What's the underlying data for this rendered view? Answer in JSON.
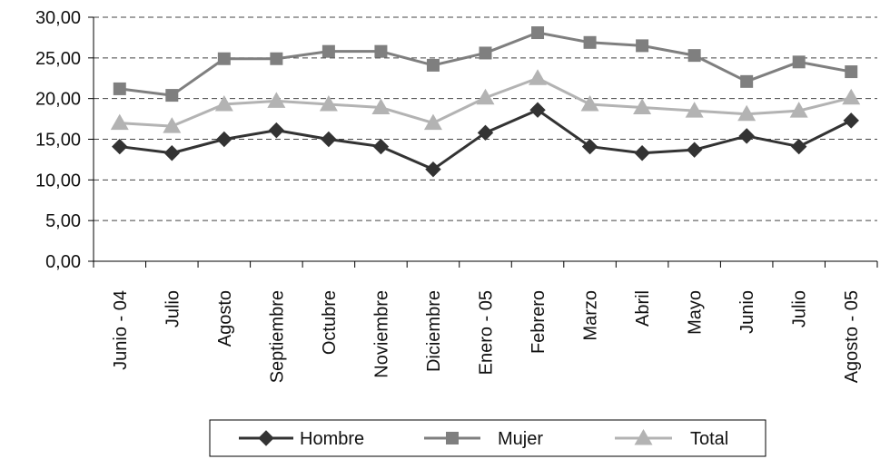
{
  "chart_data": {
    "type": "line",
    "categories": [
      "Junio - 04",
      "Julio",
      "Agosto",
      "Septiembre",
      "Octubre",
      "Noviembre",
      "Diciembre",
      "Enero - 05",
      "Febrero",
      "Marzo",
      "Abril",
      "Mayo",
      "Junio",
      "Julio",
      "Agosto - 05"
    ],
    "yticks": [
      "0,00",
      "5,00",
      "10,00",
      "15,00",
      "20,00",
      "25,00",
      "30,00"
    ],
    "ylim": [
      0,
      30
    ],
    "grid": "horizontal dashed",
    "legend_position": "bottom",
    "series": [
      {
        "name": "Hombre",
        "marker": "diamond",
        "color": "#333333",
        "values": [
          14.1,
          13.3,
          15.0,
          16.1,
          15.0,
          14.1,
          11.3,
          15.8,
          18.6,
          14.1,
          13.3,
          13.7,
          15.4,
          14.1,
          17.3
        ]
      },
      {
        "name": "Mujer",
        "marker": "square",
        "color": "#7f7f7f",
        "values": [
          21.2,
          20.4,
          24.9,
          24.9,
          25.8,
          25.8,
          24.1,
          25.6,
          28.1,
          26.9,
          26.5,
          25.3,
          22.1,
          24.5,
          23.3
        ]
      },
      {
        "name": "Total",
        "marker": "triangle",
        "color": "#b3b3b3",
        "values": [
          17.0,
          16.6,
          19.3,
          19.7,
          19.3,
          18.9,
          17.0,
          20.1,
          22.5,
          19.3,
          18.9,
          18.5,
          18.1,
          18.5,
          20.1
        ]
      }
    ]
  }
}
